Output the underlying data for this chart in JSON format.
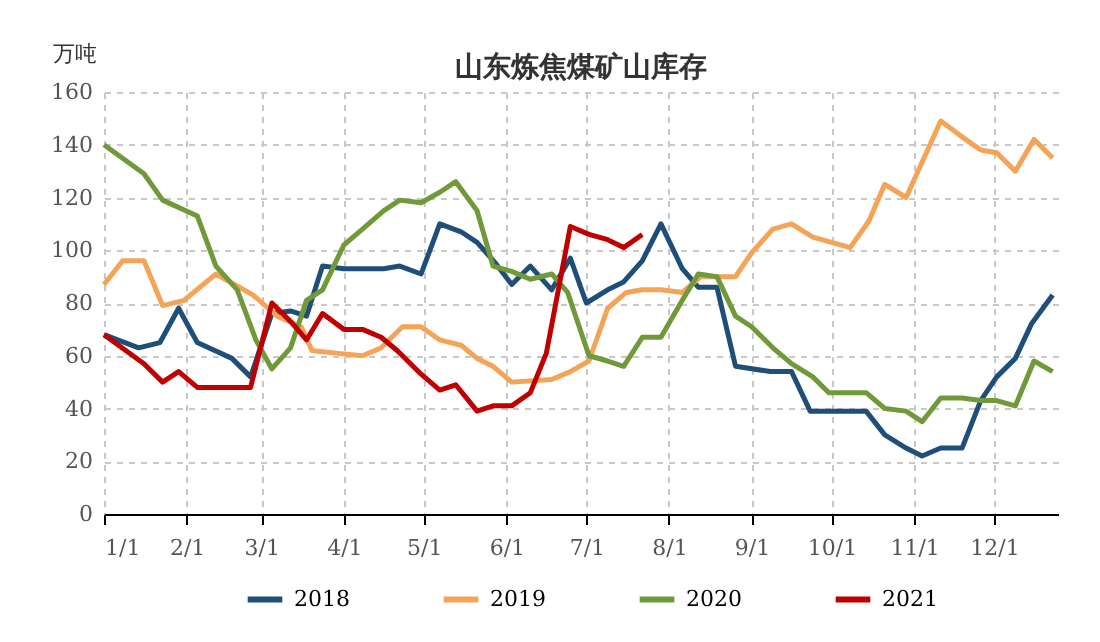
{
  "chart_data": {
    "type": "line",
    "title": "山东炼焦煤矿山库存",
    "ylabel": "万吨",
    "xlim": [
      "--01-01",
      "--12-25"
    ],
    "xticks": [
      {
        "value": "--01-01",
        "label": "1/1"
      },
      {
        "value": "--02-01",
        "label": "2/1"
      },
      {
        "value": "--03-01",
        "label": "3/1"
      },
      {
        "value": "--04-01",
        "label": "4/1"
      },
      {
        "value": "--05-01",
        "label": "5/1"
      },
      {
        "value": "--06-01",
        "label": "6/1"
      },
      {
        "value": "--07-01",
        "label": "7/1"
      },
      {
        "value": "--08-01",
        "label": "8/1"
      },
      {
        "value": "--09-01",
        "label": "9/1"
      },
      {
        "value": "--10-01",
        "label": "10/1"
      },
      {
        "value": "--11-01",
        "label": "11/1"
      },
      {
        "value": "--12-01",
        "label": "12/1"
      }
    ],
    "ylim": [
      0,
      160
    ],
    "yticks": [
      0,
      20,
      40,
      60,
      80,
      100,
      120,
      140,
      160
    ],
    "grid": true,
    "legend": "bottom",
    "marker": "none",
    "line_style": "solid",
    "series": [
      {
        "name": "2018",
        "color": "#1f4e79",
        "x": [
          "--01-01",
          "--01-14",
          "--01-22",
          "--01-29",
          "--02-05",
          "--02-18",
          "--02-25",
          "--03-05",
          "--03-12",
          "--03-18",
          "--03-24",
          "--04-01",
          "--04-16",
          "--04-22",
          "--04-30",
          "--05-07",
          "--05-15",
          "--05-21",
          "--05-28",
          "--06-03",
          "--06-10",
          "--06-18",
          "--06-25",
          "--07-01",
          "--07-09",
          "--07-15",
          "--07-22",
          "--07-29",
          "--08-06",
          "--08-12",
          "--08-19",
          "--08-26",
          "--09-08",
          "--09-16",
          "--09-23",
          "--10-14",
          "--10-21",
          "--10-29",
          "--11-04",
          "--11-11",
          "--11-19",
          "--11-26",
          "--12-02",
          "--12-09",
          "--12-15",
          "--12-23"
        ],
        "values": [
          68,
          63,
          65,
          78,
          65,
          59,
          52,
          76,
          77,
          75,
          94,
          93,
          93,
          94,
          91,
          110,
          107,
          103,
          95,
          87,
          94,
          85,
          97,
          80,
          85,
          88,
          96,
          110,
          93,
          86,
          86,
          56,
          54,
          54,
          39,
          39,
          30,
          25,
          22,
          25,
          25,
          43,
          52,
          59,
          72,
          83
        ]
      },
      {
        "name": "2019",
        "color": "#f5a356",
        "x": [
          "--01-01",
          "--01-08",
          "--01-16",
          "--01-23",
          "--01-31",
          "--02-12",
          "--02-26",
          "--03-07",
          "--03-16",
          "--03-20",
          "--03-29",
          "--04-08",
          "--04-15",
          "--04-23",
          "--04-30",
          "--05-07",
          "--05-15",
          "--05-21",
          "--05-27",
          "--06-03",
          "--06-18",
          "--06-25",
          "--07-02",
          "--07-09",
          "--07-16",
          "--07-22",
          "--07-29",
          "--08-06",
          "--08-13",
          "--08-26",
          "--09-01",
          "--09-09",
          "--09-16",
          "--09-24",
          "--10-01",
          "--10-08",
          "--10-15",
          "--10-21",
          "--10-29",
          "--11-11",
          "--11-19",
          "--11-26",
          "--12-02",
          "--12-09",
          "--12-16",
          "--12-23"
        ],
        "values": [
          87,
          96,
          96,
          79,
          81,
          91,
          83,
          75,
          71,
          62,
          61,
          60,
          63,
          71,
          71,
          66,
          64,
          59,
          56,
          50,
          51,
          54,
          58,
          78,
          84,
          85,
          85,
          84,
          90,
          90,
          99,
          108,
          110,
          105,
          103,
          101,
          111,
          125,
          120,
          149,
          143,
          138,
          137,
          130,
          142,
          135
        ]
      },
      {
        "name": "2020",
        "color": "#70993a",
        "x": [
          "--01-01",
          "--01-16",
          "--01-23",
          "--02-05",
          "--02-12",
          "--02-20",
          "--02-27",
          "--03-05",
          "--03-12",
          "--03-18",
          "--03-24",
          "--04-01",
          "--04-08",
          "--04-16",
          "--04-22",
          "--04-30",
          "--05-07",
          "--05-13",
          "--05-21",
          "--05-27",
          "--06-03",
          "--06-10",
          "--06-18",
          "--06-24",
          "--07-02",
          "--07-09",
          "--07-15",
          "--07-22",
          "--07-29",
          "--08-06",
          "--08-12",
          "--08-19",
          "--08-26",
          "--09-01",
          "--09-09",
          "--09-16",
          "--09-24",
          "--09-30",
          "--10-14",
          "--10-21",
          "--10-29",
          "--11-04",
          "--11-11",
          "--11-19",
          "--11-26",
          "--12-02",
          "--12-09",
          "--12-16",
          "--12-23"
        ],
        "values": [
          140,
          129,
          119,
          113,
          94,
          85,
          66,
          55,
          63,
          81,
          85,
          102,
          108,
          115,
          119,
          118,
          122,
          126,
          115,
          94,
          92,
          89,
          91,
          84,
          60,
          58,
          56,
          67,
          67,
          81,
          91,
          90,
          75,
          71,
          63,
          57,
          52,
          46,
          46,
          40,
          39,
          35,
          44,
          44,
          43,
          43,
          41,
          58,
          54
        ]
      },
      {
        "name": "2021",
        "color": "#c00000",
        "x": [
          "--01-01",
          "--01-16",
          "--01-23",
          "--01-29",
          "--02-05",
          "--02-18",
          "--02-25",
          "--03-05",
          "--03-12",
          "--03-18",
          "--03-24",
          "--04-01",
          "--04-08",
          "--04-15",
          "--04-21",
          "--04-30",
          "--05-07",
          "--05-13",
          "--05-21",
          "--05-27",
          "--06-03",
          "--06-10",
          "--06-16",
          "--06-25",
          "--07-02",
          "--07-09",
          "--07-15",
          "--07-22"
        ],
        "values": [
          68,
          57,
          50,
          54,
          48,
          48,
          48,
          80,
          73,
          66,
          76,
          70,
          70,
          67,
          62,
          53,
          47,
          49,
          39,
          41,
          41,
          46,
          61,
          109,
          106,
          104,
          101,
          106
        ]
      }
    ]
  }
}
